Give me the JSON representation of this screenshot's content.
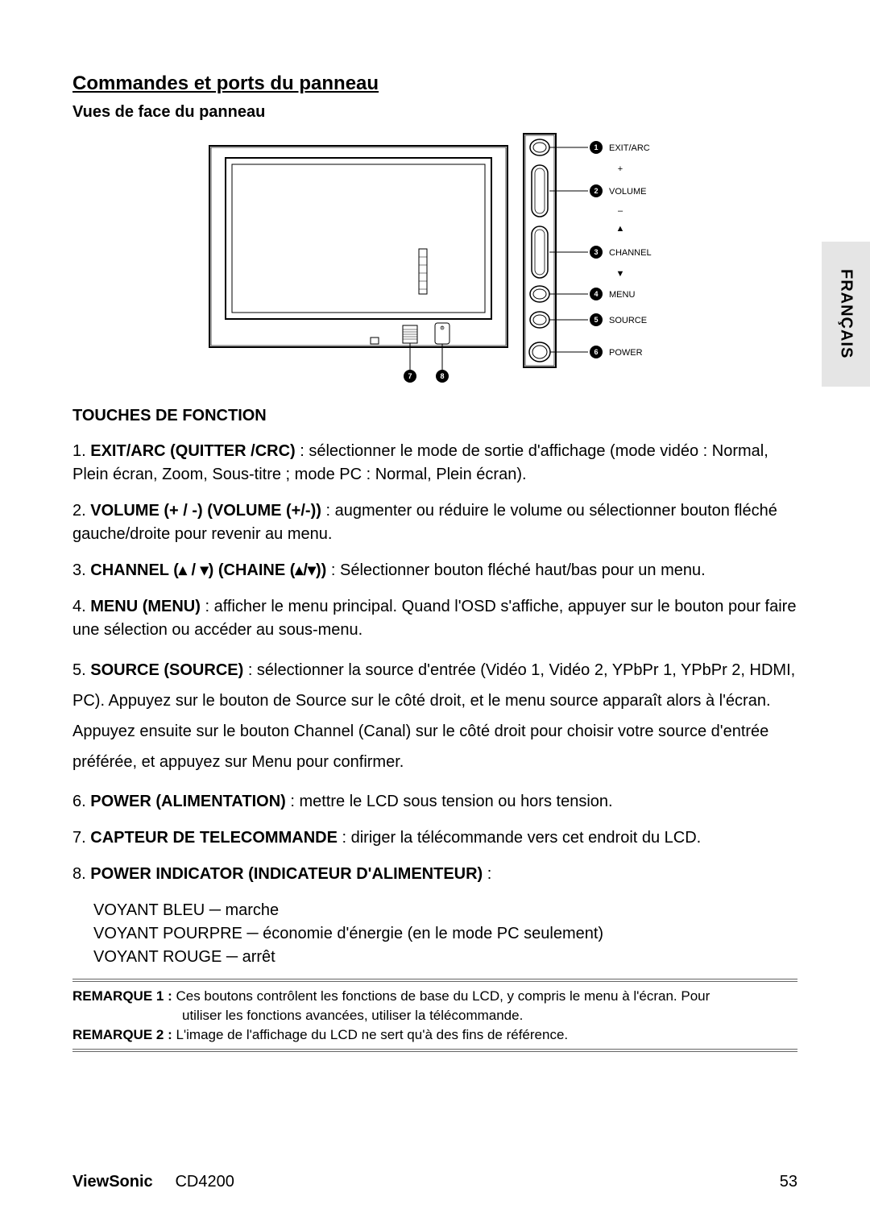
{
  "sectionTitle": "Commandes et ports du panneau",
  "subtitle": "Vues de face du panneau",
  "touchesTitle": "TOUCHES DE FONCTION",
  "sideTab": "FRANÇAIS",
  "diagram": {
    "labels": {
      "exit": "EXIT/ARC",
      "volume": "VOLUME",
      "channel": "CHANNEL",
      "menu": "MENU",
      "source": "SOURCE",
      "power": "POWER",
      "plus": "+",
      "minus": "–",
      "up": "▲",
      "down": "▼"
    }
  },
  "items": [
    {
      "num": "1.",
      "bold": "EXIT/ARC (QUITTER /CRC)",
      "rest": " : sélectionner le mode de sortie d'affichage (mode vidéo : Normal, Plein écran, Zoom, Sous-titre ; mode PC : Normal, Plein écran)."
    },
    {
      "num": "2.",
      "bold": "VOLUME (+ / -) (VOLUME (+/-))",
      "rest": " : augmenter ou réduire le volume ou sélectionner bouton fléché gauche/droite pour revenir au menu."
    },
    {
      "num": "3.",
      "bold": "CHANNEL (▴ / ▾) (CHAINE (▴/▾))",
      "rest": " : Sélectionner bouton fléché haut/bas pour un menu."
    },
    {
      "num": "4.",
      "bold": "MENU (MENU)",
      "rest": " : afficher le menu principal. Quand l'OSD s'affiche, appuyer sur le bouton pour faire une sélection ou accéder au sous-menu."
    },
    {
      "num": "5.",
      "bold": "SOURCE (SOURCE)",
      "rest": " : sélectionner la source d'entrée (Vidéo 1, Vidéo 2, YPbPr 1, YPbPr 2, HDMI, PC). Appuyez sur le bouton de Source sur le côté droit, et le menu source apparaît alors à l'écran. Appuyez ensuite sur le bouton Channel (Canal) sur le côté droit pour choisir votre source d'entrée préférée, et appuyez sur Menu pour confirmer."
    },
    {
      "num": "6.",
      "bold": "POWER (ALIMENTATION)",
      "rest": " : mettre le LCD sous tension ou hors tension."
    },
    {
      "num": "7.",
      "bold": "CAPTEUR DE TELECOMMANDE",
      "rest": " : diriger la télécommande vers cet endroit du LCD."
    },
    {
      "num": "8.",
      "bold": "POWER INDICATOR (INDICATEUR D'ALIMENTEUR)",
      "rest": " :"
    }
  ],
  "indicatorLines": [
    "VOYANT BLEU   ─ marche",
    "VOYANT POURPRE ─ économie d'énergie (en le mode PC seulement)",
    "VOYANT ROUGE ─ arrêt"
  ],
  "remarks": [
    {
      "label": "REMARQUE 1 :",
      "text": " Ces boutons contrôlent les fonctions de base du LCD, y compris le menu à l'écran. Pour",
      "cont": "utiliser les fonctions avancées, utiliser la télécommande."
    },
    {
      "label": "REMARQUE 2 :",
      "text": " L'image de l'affichage du LCD ne sert qu'à des fins de référence."
    }
  ],
  "footer": {
    "brand": "ViewSonic",
    "model": "CD4200",
    "page": "53"
  }
}
